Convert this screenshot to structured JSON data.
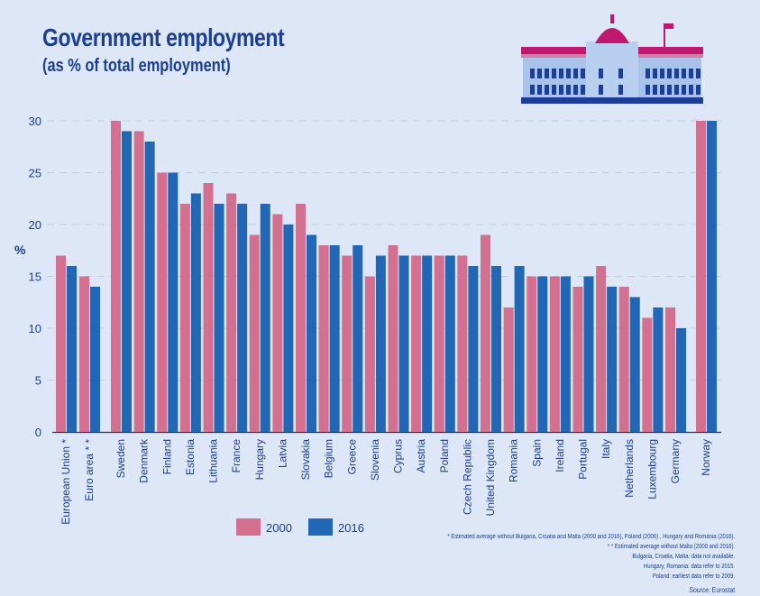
{
  "chart_data": {
    "type": "bar",
    "title": "Government employment",
    "subtitle": "(as % of total employment)",
    "ylabel": "%",
    "ylim": [
      0,
      30
    ],
    "yticks": [
      0,
      5,
      10,
      15,
      20,
      25,
      30
    ],
    "grid": true,
    "legend_placement": "bottom-left",
    "categories": [
      "European Union *",
      "Euro area * *",
      "Sweden",
      "Denmark",
      "Finland",
      "Estonia",
      "Lithuania",
      "France",
      "Hungary",
      "Latvia",
      "Slovakia",
      "Belgium",
      "Greece",
      "Slovenia",
      "Cyprus",
      "Austria",
      "Poland",
      "Czech Republic",
      "United Kingdom",
      "Romania",
      "Spain",
      "Ireland",
      "Portugal",
      "Italy",
      "Netherlands",
      "Luxembourg",
      "Germany",
      "Norway"
    ],
    "series": [
      {
        "name": "2000",
        "color": "#d3708f",
        "values": [
          17,
          15,
          30,
          29,
          25,
          22,
          24,
          23,
          19,
          21,
          22,
          18,
          17,
          15,
          18,
          17,
          17,
          17,
          19,
          12,
          15,
          15,
          14,
          16,
          14,
          11,
          12,
          30
        ]
      },
      {
        "name": "2016",
        "color": "#2167b5",
        "values": [
          16,
          14,
          29,
          28,
          25,
          23,
          22,
          22,
          22,
          20,
          19,
          18,
          18,
          17,
          17,
          17,
          17,
          16,
          16,
          16,
          15,
          15,
          15,
          14,
          13,
          12,
          10,
          30
        ]
      }
    ],
    "footnotes": [
      "* Estimated average without Bulgaria, Croatia and  Malta (2000 and 2016), Poland (2000) , Hungary and Romania (2016).",
      "* * Estimated average without Malta (2000 and 2016).",
      "Bulgaria, Croatia, Malta: data not available.",
      "Hungary, Romania: data refer to 2015.",
      "Poland: earliest data refer to 2009."
    ],
    "source_label": "Source:",
    "source": "Eurostat"
  },
  "colors": {
    "text": "#1d3f93",
    "background": "#dde7f7",
    "building_roof": "#c0186f"
  },
  "icons": {
    "illustration": "government-building-icon"
  }
}
